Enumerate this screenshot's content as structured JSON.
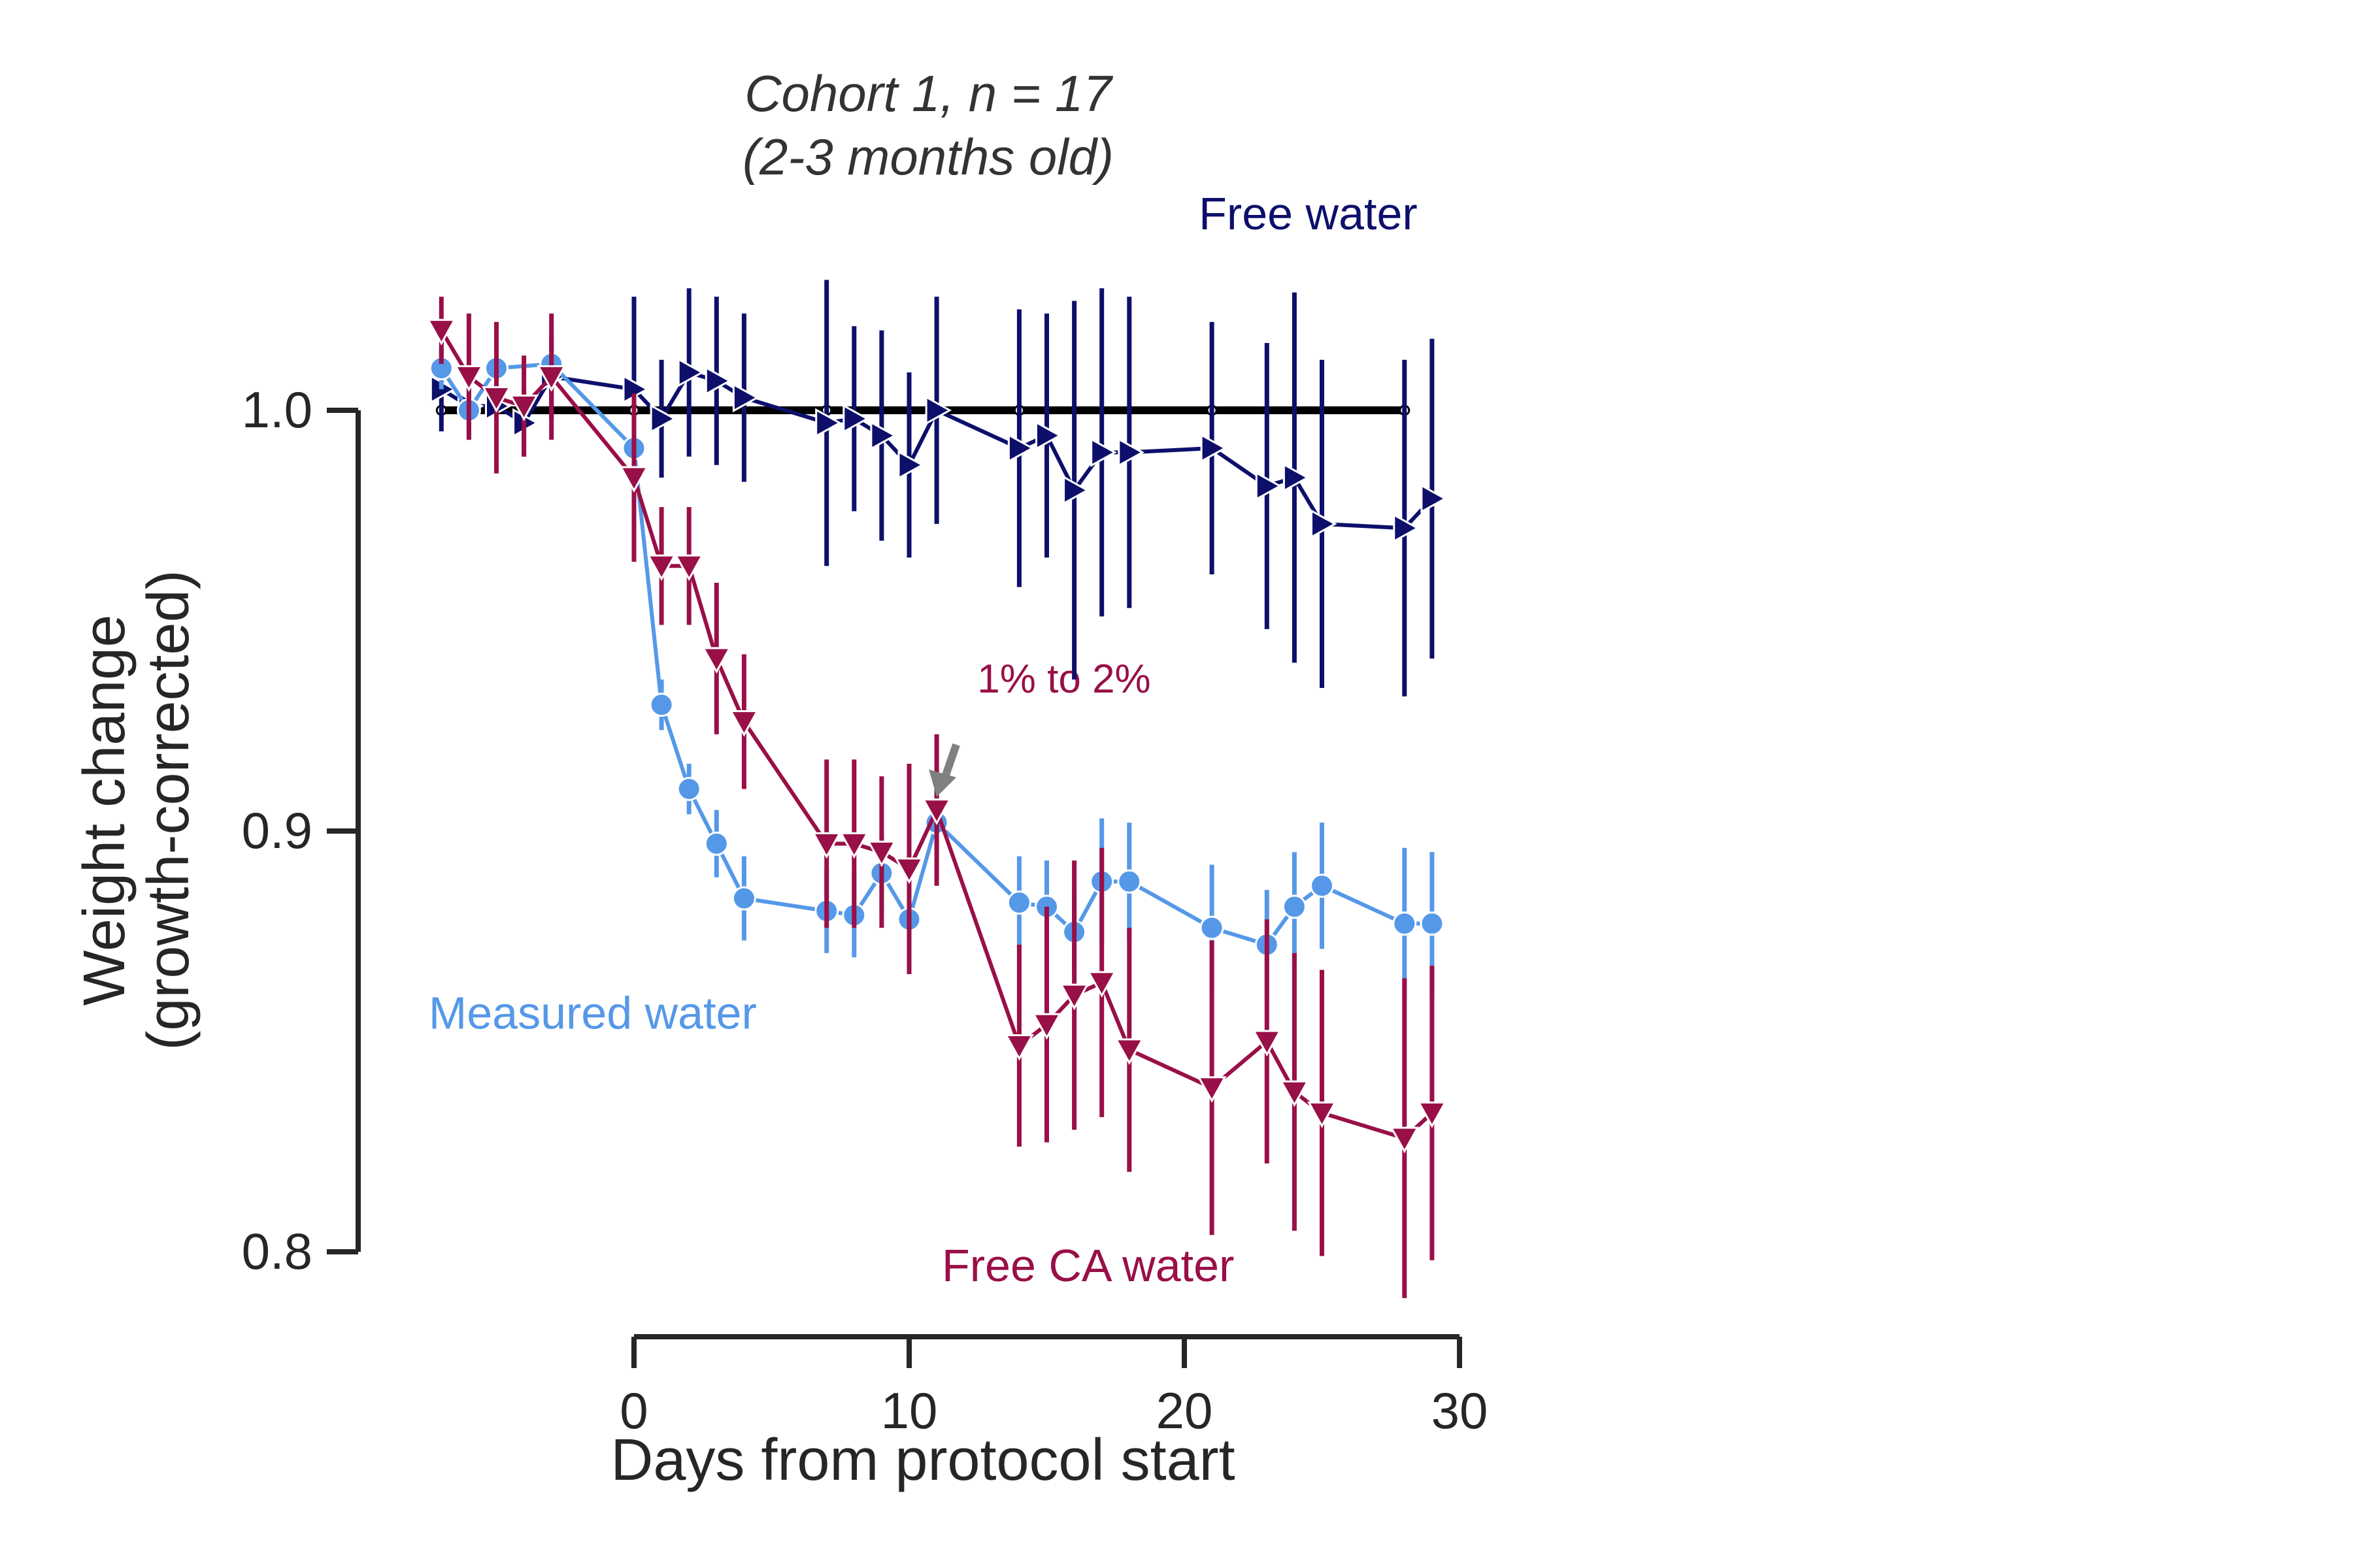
{
  "chart_data": {
    "type": "line",
    "title_line1": "Cohort 1, n = 17",
    "title_line2": "(2-3 months old)",
    "xlabel": "Days from protocol start",
    "ylabel_line1": "Weight change",
    "ylabel_line2": "(growth-corrected)",
    "xlim": [
      -7,
      30
    ],
    "ylim": [
      0.78,
      1.02
    ],
    "xticks": [
      0,
      10,
      20,
      30
    ],
    "xtick_labels": [
      "0",
      "10",
      "20",
      "30"
    ],
    "yticks": [
      0.8,
      0.9,
      1.0
    ],
    "ytick_labels": [
      "0.8",
      "0.9",
      "1.0"
    ],
    "grid": false,
    "legend": "none",
    "annotation": {
      "text": "1% to 2%",
      "x": 11,
      "y": 0.905,
      "color": "#990f47",
      "arrow_color": "#808080"
    },
    "baseline": {
      "value": 1.0,
      "x": [
        -7,
        0,
        7,
        11,
        14,
        21,
        28
      ],
      "color": "#000000"
    },
    "series": [
      {
        "name": "Free water",
        "color": "#0d0f6b",
        "marker": "triangle-right",
        "x": [
          -7,
          -6,
          -5,
          -4,
          -3,
          0,
          1,
          2,
          3,
          4,
          7,
          8,
          9,
          10,
          11,
          14,
          15,
          16,
          17,
          18,
          21,
          23,
          24,
          25,
          28,
          29
        ],
        "y": [
          1.005,
          1.001,
          1.001,
          0.997,
          1.008,
          1.005,
          0.998,
          1.009,
          1.007,
          1.003,
          0.997,
          0.998,
          0.994,
          0.987,
          1.0,
          0.991,
          0.994,
          0.981,
          0.99,
          0.99,
          0.991,
          0.982,
          0.984,
          0.973,
          0.972,
          0.979
        ],
        "err": [
          0.01,
          0.008,
          0.012,
          0.008,
          0.01,
          0.022,
          0.014,
          0.02,
          0.02,
          0.02,
          0.034,
          0.022,
          0.025,
          0.022,
          0.027,
          0.033,
          0.029,
          0.045,
          0.039,
          0.037,
          0.03,
          0.034,
          0.044,
          0.039,
          0.04,
          0.038
        ]
      },
      {
        "name": "Measured water",
        "color": "#5598e8",
        "marker": "circle",
        "x": [
          -7,
          -6,
          -5,
          -3,
          0,
          1,
          2,
          3,
          4,
          7,
          8,
          9,
          10,
          11,
          14,
          15,
          16,
          17,
          18,
          21,
          23,
          24,
          25,
          28,
          29
        ],
        "y": [
          1.01,
          1.0,
          1.01,
          1.011,
          0.991,
          0.93,
          0.91,
          0.897,
          0.884,
          0.881,
          0.88,
          0.89,
          0.879,
          0.902,
          0.883,
          0.882,
          0.876,
          0.888,
          0.888,
          0.877,
          0.873,
          0.882,
          0.887,
          0.878,
          0.878
        ],
        "err": [
          0.005,
          0.004,
          0.005,
          0.005,
          0.005,
          0.006,
          0.006,
          0.008,
          0.01,
          0.01,
          0.01,
          0.009,
          0.008,
          0.008,
          0.011,
          0.011,
          0.01,
          0.015,
          0.014,
          0.015,
          0.013,
          0.013,
          0.015,
          0.018,
          0.017
        ]
      },
      {
        "name": "Free CA water",
        "color": "#990f47",
        "marker": "triangle-down",
        "x": [
          -7,
          -6,
          -5,
          -4,
          -3,
          0,
          1,
          2,
          3,
          4,
          7,
          8,
          9,
          10,
          11,
          14,
          15,
          16,
          17,
          18,
          21,
          23,
          24,
          25,
          28,
          29
        ],
        "y": [
          1.019,
          1.008,
          1.003,
          1.001,
          1.008,
          0.984,
          0.963,
          0.963,
          0.941,
          0.926,
          0.897,
          0.897,
          0.895,
          0.891,
          0.905,
          0.849,
          0.854,
          0.861,
          0.864,
          0.848,
          0.839,
          0.85,
          0.838,
          0.833,
          0.827,
          0.833
        ],
        "err": [
          0.008,
          0.015,
          0.018,
          0.012,
          0.015,
          0.02,
          0.014,
          0.014,
          0.018,
          0.016,
          0.02,
          0.02,
          0.018,
          0.025,
          0.018,
          0.024,
          0.028,
          0.032,
          0.032,
          0.029,
          0.035,
          0.029,
          0.033,
          0.034,
          0.038,
          0.035
        ]
      }
    ],
    "series_labels": [
      {
        "series": "Free water",
        "text": "Free water",
        "x": 24.5,
        "y": 1.043,
        "color": "#0d0f6b"
      },
      {
        "series": "Measured water",
        "text": "Measured water",
        "x": -1.5,
        "y": 0.853,
        "color": "#5598e8"
      },
      {
        "series": "Free CA water",
        "text": "Free CA water",
        "x": 16.5,
        "y": 0.793,
        "color": "#990f47"
      }
    ]
  }
}
